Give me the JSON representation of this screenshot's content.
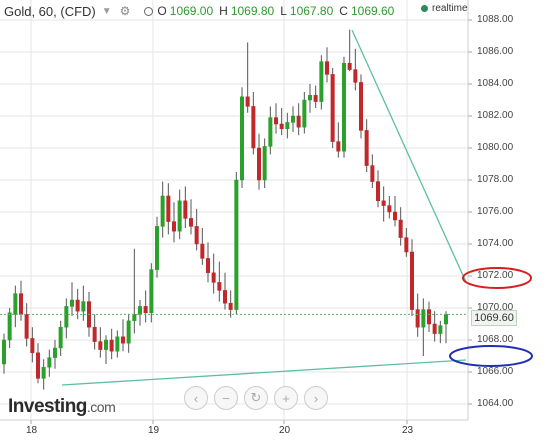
{
  "header": {
    "title": "Gold, 60, (CFD)",
    "chevron_icon": "chevron-down-icon",
    "gear_icon": "gear-icon",
    "o_label": "O",
    "o_value": "1069.00",
    "h_label": "H",
    "h_value": "1069.80",
    "l_label": "L",
    "l_value": "1067.80",
    "c_label": "C",
    "c_value": "1069.60"
  },
  "realtime_label": "realtime",
  "logo_text": "Investing",
  "logo_suffix": ".com",
  "nav_buttons": [
    {
      "name": "nav-prev-button",
      "icon": "chevron-left-icon",
      "glyph": "‹"
    },
    {
      "name": "zoom-out-button",
      "icon": "minus-icon",
      "glyph": "−"
    },
    {
      "name": "reset-button",
      "icon": "refresh-icon",
      "glyph": "↻"
    },
    {
      "name": "zoom-in-button",
      "icon": "plus-icon",
      "glyph": "+"
    },
    {
      "name": "nav-next-button",
      "icon": "chevron-right-icon",
      "glyph": "›"
    }
  ],
  "last_price": "1069.60",
  "colors": {
    "up": "#2ca02c",
    "down": "#c0282b",
    "grid": "#e6e6e6",
    "trendline": "#5cbfa4",
    "circle_red": "#d62020",
    "circle_blue": "#1f2fb0"
  },
  "chart_data": {
    "type": "candlestick",
    "instrument": "Gold",
    "interval": "60",
    "y_tick_labels": [
      "1088.00",
      "1086.00",
      "1084.00",
      "1082.00",
      "1080.00",
      "1078.00",
      "1076.00",
      "1074.00",
      "1072.00",
      "1070.00",
      "1068.00",
      "1066.00",
      "1064.00"
    ],
    "ylim": [
      1062.8,
      1088.6
    ],
    "x_tick_labels": [
      "18",
      "19",
      "20",
      "23"
    ],
    "grid": true,
    "candles": [
      [
        1066.5,
        1068.4,
        1065.9,
        1068.0
      ],
      [
        1068.0,
        1070.0,
        1067.5,
        1069.7
      ],
      [
        1069.6,
        1071.4,
        1068.8,
        1070.9
      ],
      [
        1070.9,
        1071.7,
        1069.2,
        1069.6
      ],
      [
        1069.6,
        1070.3,
        1067.6,
        1068.1
      ],
      [
        1068.1,
        1068.8,
        1066.6,
        1067.2
      ],
      [
        1067.2,
        1067.8,
        1065.3,
        1065.6
      ],
      [
        1065.6,
        1066.8,
        1064.9,
        1066.3
      ],
      [
        1066.3,
        1067.4,
        1065.7,
        1066.9
      ],
      [
        1066.9,
        1068.0,
        1066.2,
        1067.5
      ],
      [
        1067.5,
        1069.2,
        1067.0,
        1068.8
      ],
      [
        1068.8,
        1070.6,
        1068.1,
        1070.1
      ],
      [
        1070.1,
        1071.6,
        1069.5,
        1070.5
      ],
      [
        1070.5,
        1071.2,
        1069.3,
        1069.8
      ],
      [
        1069.8,
        1071.4,
        1069.2,
        1070.4
      ],
      [
        1070.4,
        1071.0,
        1068.2,
        1068.8
      ],
      [
        1068.8,
        1069.6,
        1067.4,
        1067.9
      ],
      [
        1067.9,
        1068.8,
        1066.9,
        1067.4
      ],
      [
        1067.4,
        1068.3,
        1066.5,
        1068.0
      ],
      [
        1068.0,
        1068.7,
        1066.8,
        1067.3
      ],
      [
        1067.3,
        1068.6,
        1066.9,
        1068.2
      ],
      [
        1068.2,
        1069.3,
        1067.3,
        1067.8
      ],
      [
        1067.8,
        1069.6,
        1067.2,
        1069.2
      ],
      [
        1069.2,
        1073.7,
        1068.4,
        1069.6
      ],
      [
        1069.6,
        1070.5,
        1068.9,
        1070.1
      ],
      [
        1070.1,
        1071.1,
        1069.1,
        1069.7
      ],
      [
        1069.7,
        1072.8,
        1069.1,
        1072.4
      ],
      [
        1072.4,
        1075.7,
        1071.9,
        1075.1
      ],
      [
        1075.1,
        1077.9,
        1074.4,
        1077.0
      ],
      [
        1077.0,
        1077.8,
        1074.6,
        1075.4
      ],
      [
        1075.4,
        1076.6,
        1074.1,
        1074.8
      ],
      [
        1074.8,
        1077.4,
        1074.3,
        1076.7
      ],
      [
        1076.7,
        1077.6,
        1075.0,
        1075.6
      ],
      [
        1075.6,
        1076.8,
        1074.6,
        1075.1
      ],
      [
        1075.1,
        1076.2,
        1073.6,
        1074.0
      ],
      [
        1074.0,
        1075.0,
        1072.7,
        1073.1
      ],
      [
        1073.1,
        1074.1,
        1071.6,
        1072.2
      ],
      [
        1072.2,
        1073.4,
        1070.9,
        1071.6
      ],
      [
        1071.6,
        1072.9,
        1070.4,
        1071.1
      ],
      [
        1071.1,
        1072.2,
        1069.9,
        1070.3
      ],
      [
        1070.3,
        1071.1,
        1069.4,
        1069.9
      ],
      [
        1069.9,
        1078.5,
        1069.6,
        1078.0
      ],
      [
        1078.0,
        1083.8,
        1077.5,
        1083.2
      ],
      [
        1083.2,
        1086.6,
        1082.2,
        1082.6
      ],
      [
        1082.6,
        1083.5,
        1079.6,
        1080.0
      ],
      [
        1080.0,
        1080.9,
        1077.4,
        1078.0
      ],
      [
        1078.0,
        1080.6,
        1077.5,
        1080.1
      ],
      [
        1080.1,
        1082.6,
        1079.6,
        1081.9
      ],
      [
        1081.9,
        1082.8,
        1080.9,
        1081.5
      ],
      [
        1081.5,
        1082.5,
        1080.8,
        1081.2
      ],
      [
        1081.2,
        1082.2,
        1080.6,
        1081.6
      ],
      [
        1081.6,
        1082.6,
        1081.0,
        1082.0
      ],
      [
        1082.0,
        1082.8,
        1080.8,
        1081.3
      ],
      [
        1081.3,
        1083.5,
        1080.9,
        1083.0
      ],
      [
        1083.0,
        1084.0,
        1082.2,
        1083.3
      ],
      [
        1083.3,
        1083.9,
        1082.5,
        1082.9
      ],
      [
        1082.9,
        1085.8,
        1082.4,
        1085.4
      ],
      [
        1085.4,
        1086.3,
        1084.1,
        1084.6
      ],
      [
        1084.6,
        1085.0,
        1080.0,
        1080.4
      ],
      [
        1080.4,
        1081.6,
        1079.4,
        1079.8
      ],
      [
        1079.8,
        1085.7,
        1079.4,
        1085.3
      ],
      [
        1085.3,
        1087.4,
        1084.8,
        1084.9
      ],
      [
        1084.9,
        1086.2,
        1083.6,
        1084.1
      ],
      [
        1084.1,
        1084.6,
        1080.6,
        1081.1
      ],
      [
        1081.1,
        1081.8,
        1078.5,
        1078.9
      ],
      [
        1078.9,
        1079.6,
        1077.5,
        1077.9
      ],
      [
        1077.9,
        1078.6,
        1076.3,
        1076.7
      ],
      [
        1076.7,
        1077.6,
        1075.4,
        1076.4
      ],
      [
        1076.4,
        1077.0,
        1075.6,
        1076.0
      ],
      [
        1076.0,
        1077.0,
        1075.1,
        1075.5
      ],
      [
        1075.5,
        1076.3,
        1073.9,
        1074.4
      ],
      [
        1074.4,
        1075.0,
        1073.2,
        1073.5
      ],
      [
        1073.5,
        1074.3,
        1069.5,
        1069.9
      ],
      [
        1069.9,
        1070.9,
        1068.2,
        1068.8
      ],
      [
        1068.8,
        1070.6,
        1067.0,
        1069.9
      ],
      [
        1069.9,
        1070.4,
        1068.5,
        1069.0
      ],
      [
        1069.0,
        1069.8,
        1067.9,
        1068.4
      ],
      [
        1068.4,
        1069.2,
        1067.8,
        1068.9
      ],
      [
        1069.0,
        1069.8,
        1067.8,
        1069.6
      ]
    ]
  }
}
